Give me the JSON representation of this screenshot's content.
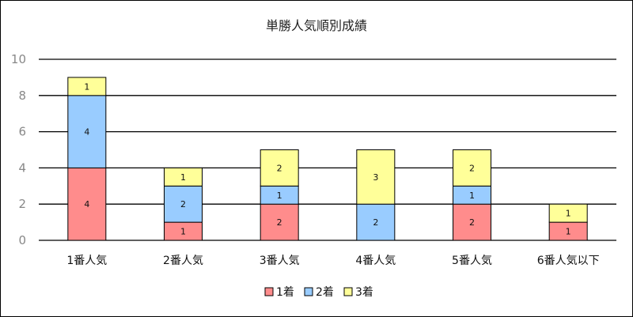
{
  "chart_data": {
    "type": "bar",
    "stacked": true,
    "title": "単勝人気順別成績",
    "xlabel": "",
    "ylabel": "",
    "categories": [
      "1番人気",
      "2番人気",
      "3番人気",
      "4番人気",
      "5番人気",
      "6番人気以下"
    ],
    "series": [
      {
        "name": "1着",
        "color": "#ff8c8c",
        "values": [
          4,
          1,
          2,
          0,
          2,
          1
        ]
      },
      {
        "name": "2着",
        "color": "#99ccff",
        "values": [
          4,
          2,
          1,
          2,
          1,
          0
        ]
      },
      {
        "name": "3着",
        "color": "#ffff99",
        "values": [
          1,
          1,
          2,
          3,
          2,
          1
        ]
      }
    ],
    "ylim": [
      0,
      10
    ],
    "yticks": [
      0,
      2,
      4,
      6,
      8,
      10
    ],
    "grid": true,
    "legend_position": "bottom"
  }
}
